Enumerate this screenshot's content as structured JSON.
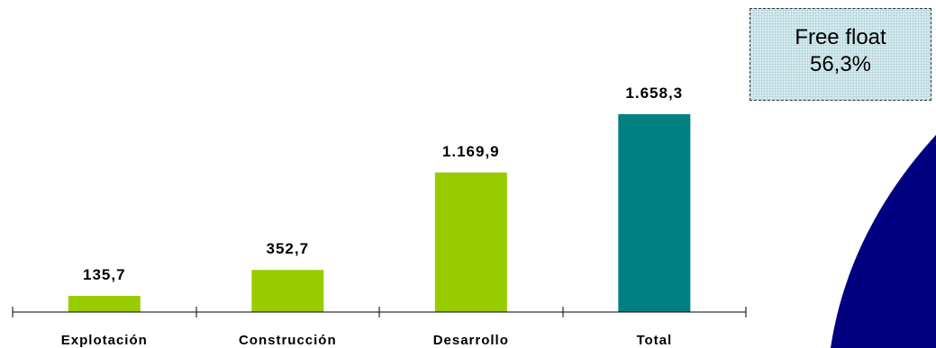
{
  "chart_data": {
    "type": "bar",
    "categories": [
      "Explotación",
      "Construcción",
      "Desarrollo",
      "Total"
    ],
    "values": [
      135.7,
      352.7,
      1169.9,
      1658.3
    ],
    "value_labels": [
      "135,7",
      "352,7",
      "1.169,9",
      "1.658,3"
    ],
    "title": "",
    "xlabel": "",
    "ylabel": "",
    "ylim": [
      0,
      1658.3
    ],
    "grid": false,
    "legend": "none",
    "colors": [
      "#99cc00",
      "#99cc00",
      "#99cc00",
      "#008080"
    ]
  },
  "annotation": {
    "line1": "Free float",
    "line2": "56,3%"
  },
  "pie_segment_color": "#000080"
}
